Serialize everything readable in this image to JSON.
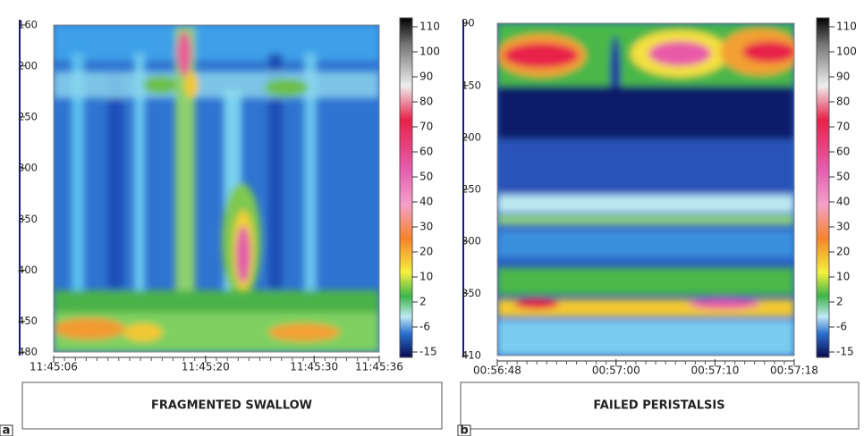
{
  "chart_data": [
    {
      "type": "heatmap",
      "panel_label": "a",
      "title": "FRAGMENTED SWALLOW",
      "ylim": [
        160,
        480
      ],
      "yticks": [
        160,
        200,
        250,
        300,
        350,
        400,
        450,
        480
      ],
      "xlim": [
        6,
        36
      ],
      "xticks": [
        {
          "value": 6,
          "label": "11:45:06"
        },
        {
          "value": 20,
          "label": "11:45:20"
        },
        {
          "value": 30,
          "label": "11:45:30"
        },
        {
          "value": 36,
          "label": "11:45:36"
        }
      ],
      "colorbar_ticks": [
        110,
        100,
        90,
        80,
        70,
        60,
        50,
        40,
        30,
        20,
        10,
        2,
        -6,
        -15
      ]
    },
    {
      "type": "heatmap",
      "panel_label": "b",
      "title": "FAILED PERISTALSIS",
      "ylim": [
        90,
        410
      ],
      "yticks": [
        90,
        150,
        200,
        250,
        300,
        350,
        410
      ],
      "xlim": [
        48,
        78
      ],
      "xticks": [
        {
          "value": 48,
          "label": "00:56:48"
        },
        {
          "value": 60,
          "label": "00:57:00"
        },
        {
          "value": 70,
          "label": "00:57:10"
        },
        {
          "value": 78,
          "label": "00:57:18"
        }
      ],
      "colorbar_ticks": [
        110,
        100,
        90,
        80,
        70,
        60,
        50,
        40,
        30,
        20,
        10,
        2,
        -6,
        -15
      ]
    }
  ]
}
